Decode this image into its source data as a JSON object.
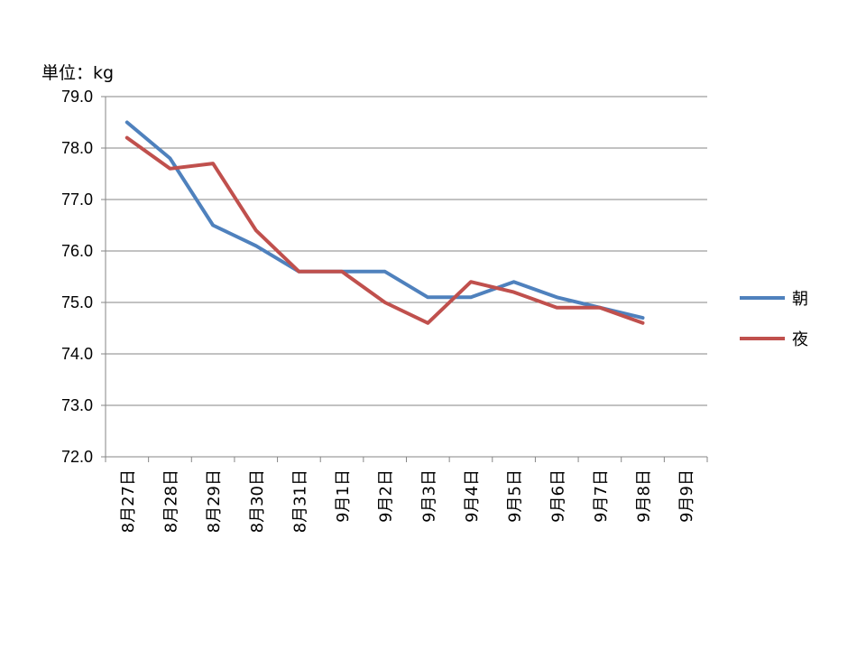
{
  "unit_label": "単位：kg",
  "chart_data": {
    "type": "line",
    "title": "",
    "xlabel": "",
    "ylabel": "",
    "ylim": [
      72.0,
      79.0
    ],
    "yticks": [
      "72.0",
      "73.0",
      "74.0",
      "75.0",
      "76.0",
      "77.0",
      "78.0",
      "79.0"
    ],
    "grid": true,
    "legend_position": "right",
    "categories": [
      "8月27日",
      "8月28日",
      "8月29日",
      "8月30日",
      "8月31日",
      "9月1日",
      "9月2日",
      "9月3日",
      "9月4日",
      "9月5日",
      "9月6日",
      "9月7日",
      "9月8日",
      "9月9日"
    ],
    "series": [
      {
        "name": "朝",
        "color": "#4F81BD",
        "values": [
          78.5,
          77.8,
          76.5,
          76.1,
          75.6,
          75.6,
          75.6,
          75.1,
          75.1,
          75.4,
          75.1,
          74.9,
          74.7,
          null
        ]
      },
      {
        "name": "夜",
        "color": "#C0504D",
        "values": [
          78.2,
          77.6,
          77.7,
          76.4,
          75.6,
          75.6,
          75.0,
          74.6,
          75.4,
          75.2,
          74.9,
          74.9,
          74.6,
          null
        ]
      }
    ]
  }
}
